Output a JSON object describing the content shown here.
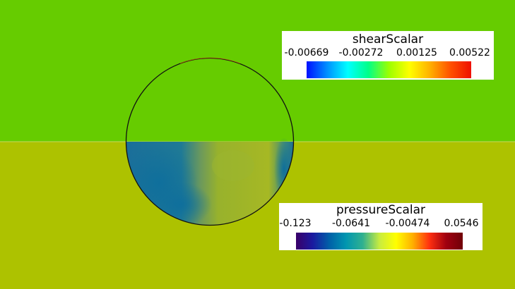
{
  "colors": {
    "upper_background": "#66cc00",
    "lower_background": "#adc200",
    "circle_outline": "#111111"
  },
  "shear_legend": {
    "title": "shearScalar",
    "ticks": [
      "-0.00669",
      "-0.00272",
      "0.00125",
      "0.00522"
    ],
    "colormap": [
      "#0010ff",
      "#0090ff",
      "#00ffff",
      "#00ff88",
      "#9cff00",
      "#ffff00",
      "#ffb000",
      "#ff5000",
      "#ee1000"
    ]
  },
  "pressure_legend": {
    "title": "pressureScalar",
    "ticks": [
      "-0.123",
      "-0.0641",
      "-0.00474",
      "0.0546"
    ],
    "colormap": [
      "#3a0068",
      "#1a1aa0",
      "#0060a8",
      "#0096b0",
      "#30b090",
      "#c8ec40",
      "#ffff00",
      "#ffb000",
      "#ff3010",
      "#a00010",
      "#700008"
    ]
  }
}
